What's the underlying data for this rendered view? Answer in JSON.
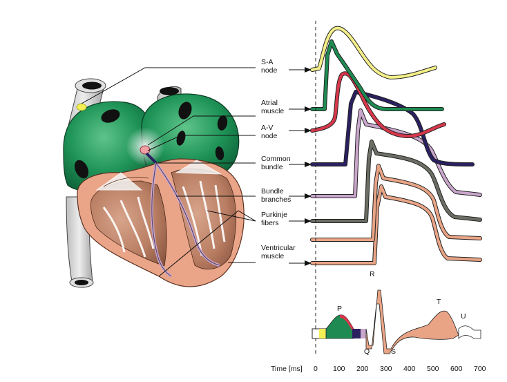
{
  "structures": [
    {
      "key": "sa",
      "line1": "S-A",
      "line2": "node",
      "color": "#f4ef88"
    },
    {
      "key": "atrial",
      "line1": "Atrial",
      "line2": "muscle",
      "color": "#1f8a52"
    },
    {
      "key": "av",
      "line1": "A-V",
      "line2": "node",
      "color": "#d8384c"
    },
    {
      "key": "bundle",
      "line1": "Common",
      "line2": "bundle",
      "color": "#2a2060"
    },
    {
      "key": "branches",
      "line1": "Bundle",
      "line2": "branches",
      "color": "#c9a6cc"
    },
    {
      "key": "purkinje",
      "line1": "Purkinje",
      "line2": "fibers",
      "color": "#6a6e64"
    },
    {
      "key": "ventricular",
      "line1": "Ventricular",
      "line2": "muscle",
      "color": "#e9a486"
    }
  ],
  "ecg_waves": {
    "P": "P",
    "Q": "Q",
    "R": "R",
    "S": "S",
    "T": "T",
    "U": "U"
  },
  "time_axis": {
    "label": "Time [ms]",
    "ticks": [
      "0",
      "100",
      "200",
      "300",
      "400",
      "500",
      "600",
      "700"
    ]
  }
}
